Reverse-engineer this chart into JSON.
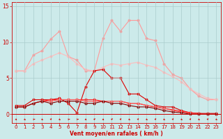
{
  "x": [
    0,
    1,
    2,
    3,
    4,
    5,
    6,
    7,
    8,
    9,
    10,
    11,
    12,
    13,
    14,
    15,
    16,
    17,
    18,
    19,
    20,
    21,
    22,
    23
  ],
  "series": [
    {
      "color": "#ff9999",
      "lw": 0.8,
      "y": [
        6.0,
        6.0,
        8.2,
        8.8,
        10.4,
        11.5,
        8.0,
        7.5,
        6.0,
        6.0,
        10.5,
        13.0,
        11.5,
        13.0,
        13.0,
        10.5,
        10.2,
        7.0,
        5.5,
        5.0,
        3.5,
        2.5,
        2.0,
        2.0
      ]
    },
    {
      "color": "#ffbbbb",
      "lw": 0.8,
      "y": [
        6.0,
        6.0,
        7.0,
        7.5,
        8.0,
        8.5,
        8.0,
        7.0,
        6.2,
        6.0,
        6.5,
        7.0,
        6.8,
        7.0,
        7.2,
        6.8,
        6.5,
        5.8,
        5.2,
        4.5,
        3.5,
        2.8,
        2.2,
        2.0
      ]
    },
    {
      "color": "#dd0000",
      "lw": 0.8,
      "y": [
        1.2,
        1.2,
        2.0,
        2.0,
        2.0,
        2.2,
        1.5,
        0.2,
        3.8,
        6.0,
        6.2,
        5.0,
        5.0,
        2.8,
        2.8,
        2.0,
        1.2,
        1.0,
        1.0,
        0.5,
        0.2,
        0.1,
        0.1,
        0.1
      ]
    },
    {
      "color": "#ff2222",
      "lw": 0.8,
      "y": [
        1.0,
        1.0,
        1.5,
        1.8,
        2.0,
        2.0,
        2.0,
        2.0,
        2.0,
        2.0,
        1.8,
        1.8,
        1.8,
        1.5,
        1.5,
        1.2,
        1.0,
        0.8,
        0.6,
        0.4,
        0.2,
        0.1,
        0.0,
        0.0
      ]
    },
    {
      "color": "#ff5555",
      "lw": 0.8,
      "y": [
        1.0,
        1.0,
        1.5,
        1.8,
        1.8,
        2.0,
        2.0,
        2.0,
        1.8,
        1.8,
        1.8,
        1.8,
        1.8,
        1.5,
        1.5,
        1.2,
        1.0,
        0.8,
        0.5,
        0.3,
        0.1,
        0.0,
        0.0,
        0.0
      ]
    },
    {
      "color": "#880000",
      "lw": 0.8,
      "y": [
        1.0,
        1.0,
        1.5,
        1.8,
        1.5,
        1.8,
        1.8,
        1.8,
        1.5,
        1.5,
        1.8,
        1.5,
        1.5,
        1.2,
        1.0,
        1.0,
        0.8,
        0.5,
        0.3,
        0.2,
        0.0,
        0.0,
        0.0,
        0.0
      ]
    }
  ],
  "arrow_angles": [
    45,
    45,
    90,
    45,
    135,
    45,
    90,
    90,
    45,
    135,
    45,
    135,
    135,
    45,
    135,
    45,
    135,
    45,
    135,
    45,
    135,
    45,
    135,
    45
  ],
  "xlim": [
    -0.5,
    23.5
  ],
  "ylim": [
    -1.2,
    15.5
  ],
  "yticks": [
    0,
    5,
    10,
    15
  ],
  "xticks": [
    0,
    1,
    2,
    3,
    4,
    5,
    6,
    7,
    8,
    9,
    10,
    11,
    12,
    13,
    14,
    15,
    16,
    17,
    18,
    19,
    20,
    21,
    22,
    23
  ],
  "xlabel": "Vent moyen/en rafales ( km/h )",
  "bg_color": "#cceaea",
  "grid_color": "#aacccc",
  "text_color": "#cc0000",
  "arrow_color": "#cc0000",
  "tick_color": "#cc0000"
}
